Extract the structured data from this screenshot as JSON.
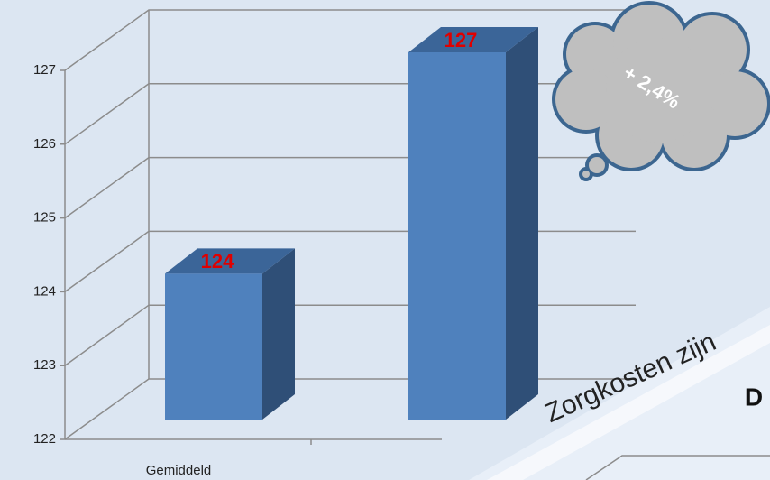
{
  "chart_data": {
    "type": "bar",
    "categories": [
      "Gemiddeld",
      null
    ],
    "values": [
      124,
      127
    ],
    "color": "#4f81bd",
    "value_label_color": "#e00000",
    "ylim": [
      122,
      127
    ],
    "yticks": [
      122,
      123,
      124,
      125,
      126,
      127
    ],
    "grid": true,
    "annotations": [
      "+ 2,4%",
      "Zorgkosten zijn",
      "D"
    ]
  }
}
